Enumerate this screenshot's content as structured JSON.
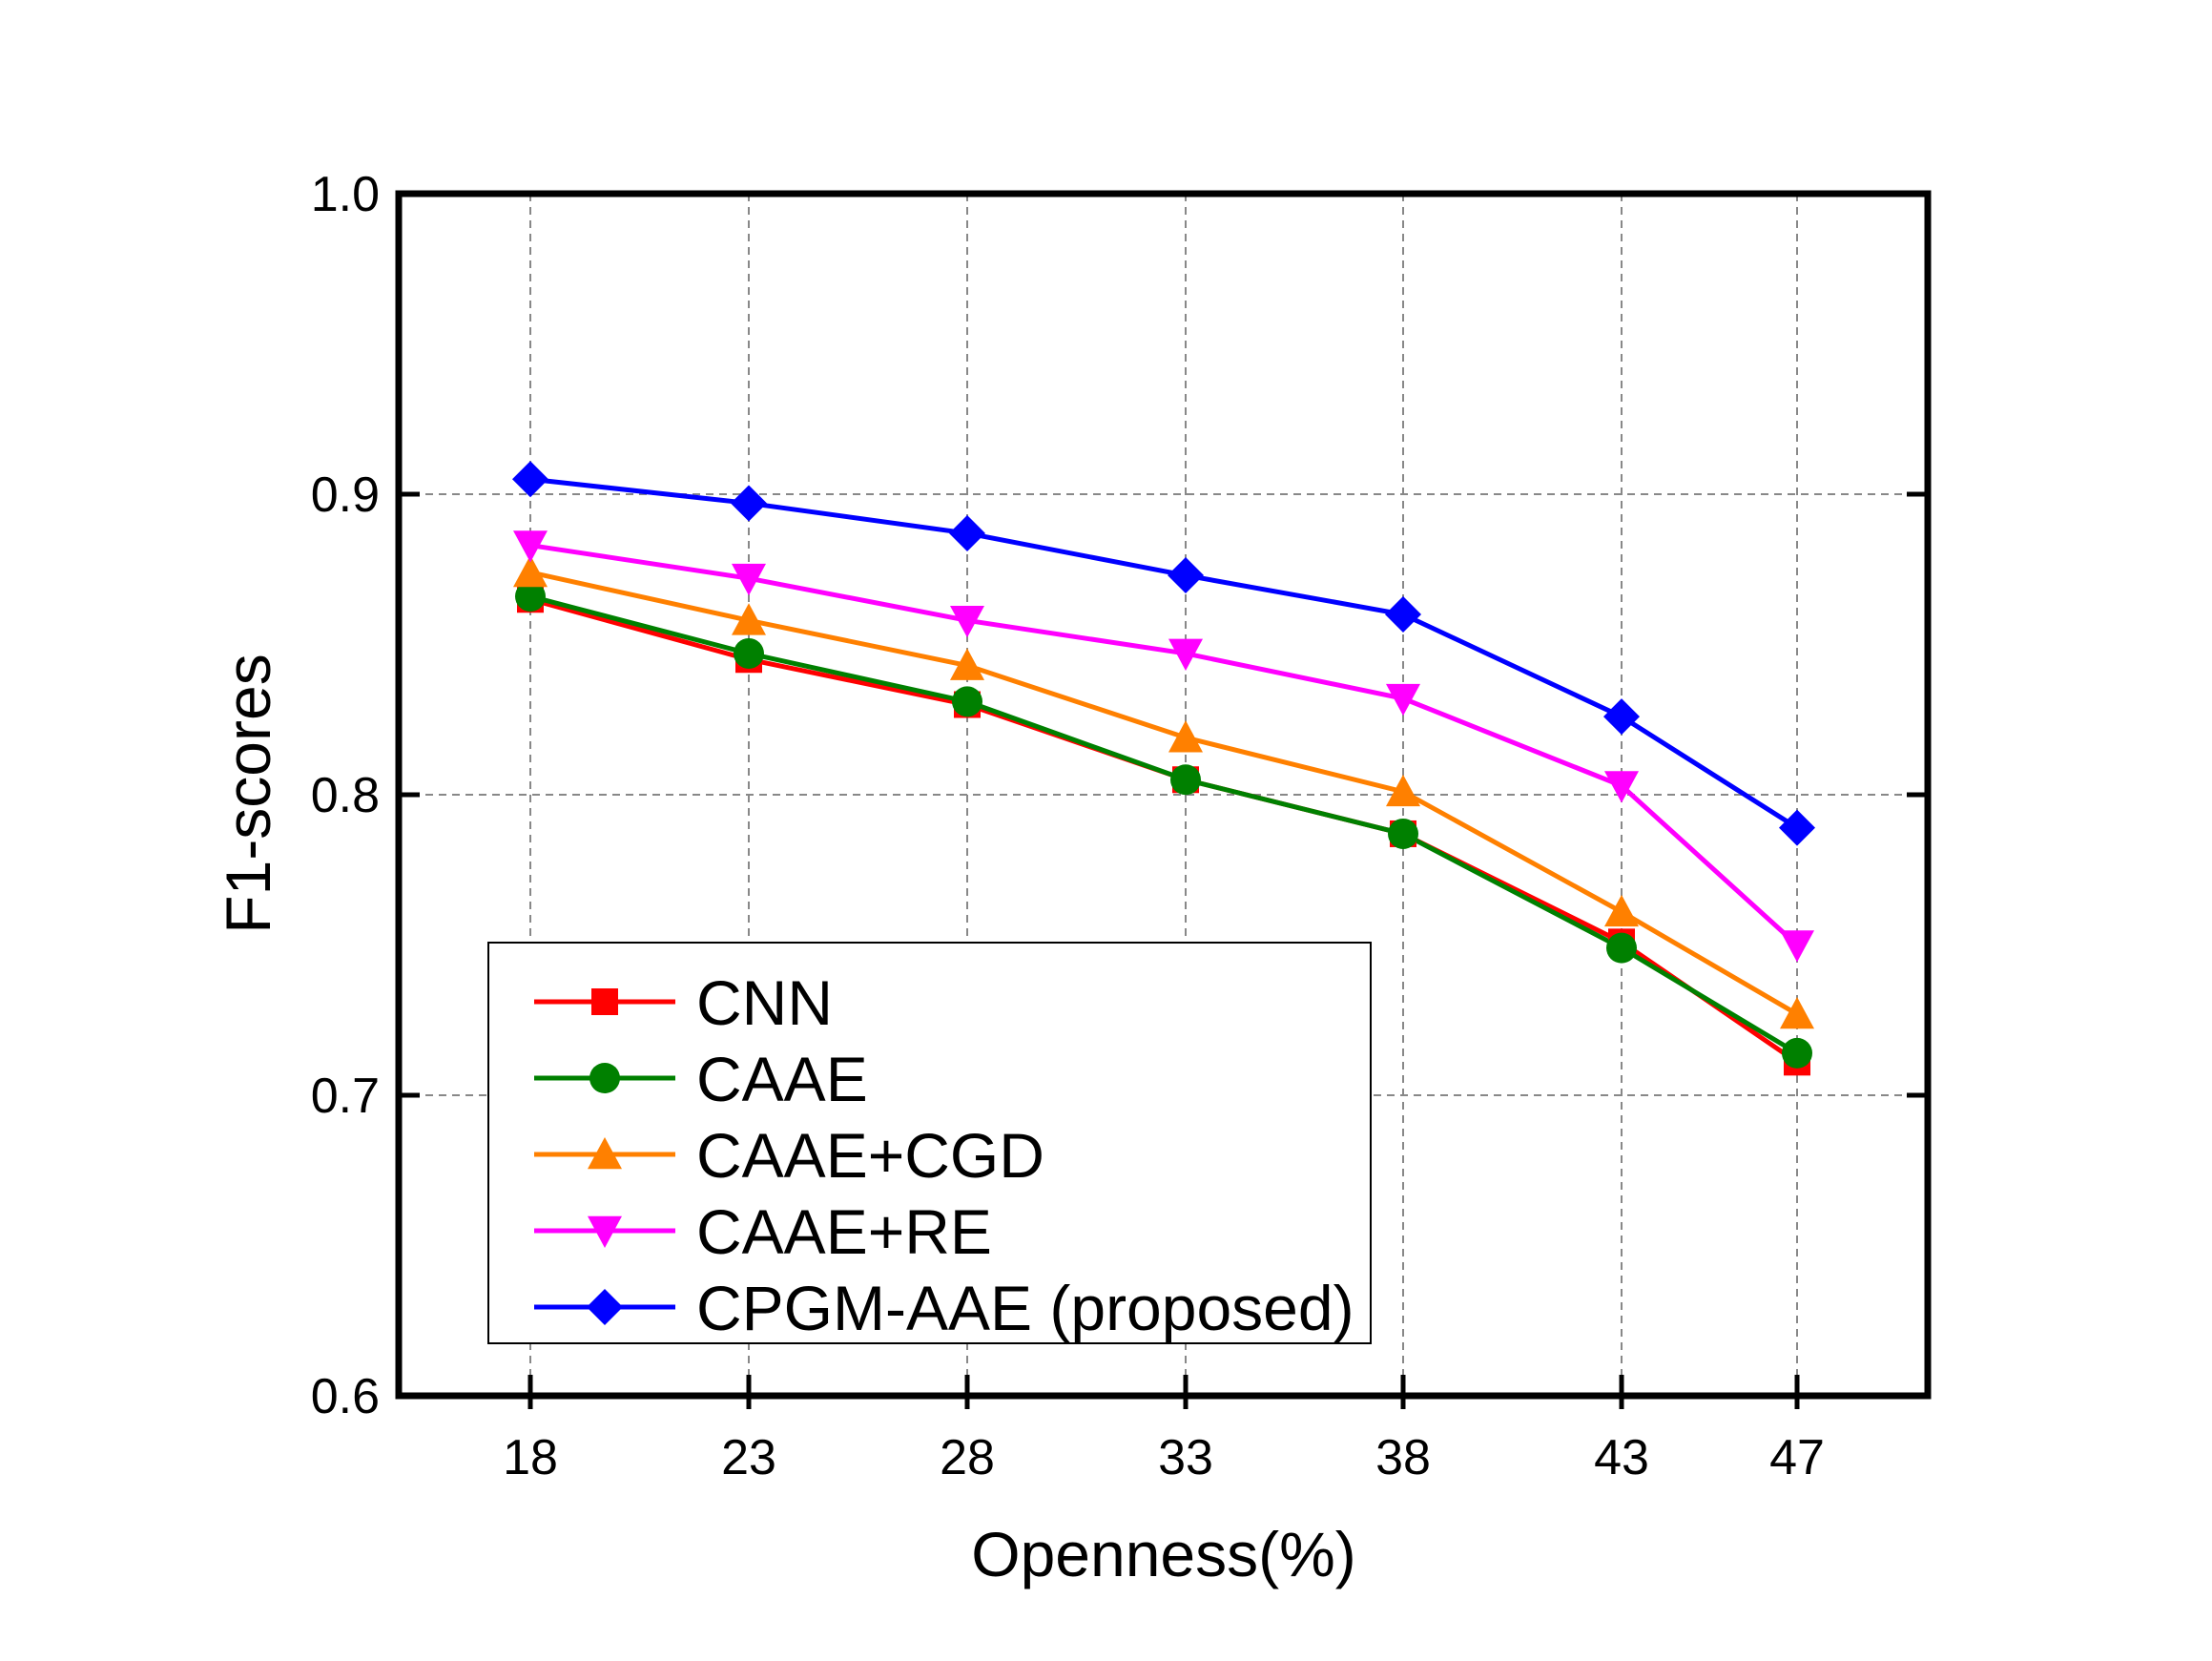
{
  "chart_data": {
    "type": "line",
    "title": "",
    "xlabel": "Openness(%)",
    "ylabel": "F1-scores",
    "categories": [
      "18",
      "23",
      "28",
      "33",
      "38",
      "43",
      "47"
    ],
    "x": [
      18,
      23,
      28,
      33,
      38,
      43,
      47
    ],
    "ylim": [
      0.6,
      1.0
    ],
    "yticks": [
      "0.6",
      "0.7",
      "0.8",
      "0.9",
      "1.0"
    ],
    "grid": true,
    "legend_position": "bottom-left",
    "series": [
      {
        "name": "CNN",
        "color": "#ff0000",
        "marker": "square",
        "values": [
          0.865,
          0.845,
          0.83,
          0.805,
          0.787,
          0.751,
          0.711
        ]
      },
      {
        "name": "CAAE",
        "color": "#008000",
        "marker": "circle",
        "values": [
          0.866,
          0.847,
          0.831,
          0.805,
          0.787,
          0.749,
          0.714
        ]
      },
      {
        "name": "CAAE+CGD",
        "color": "#ff8000",
        "marker": "triangle-up",
        "values": [
          0.874,
          0.858,
          0.843,
          0.819,
          0.801,
          0.761,
          0.727
        ]
      },
      {
        "name": "CAAE+RE",
        "color": "#ff00ff",
        "marker": "triangle-down",
        "values": [
          0.883,
          0.872,
          0.858,
          0.847,
          0.832,
          0.803,
          0.75
        ]
      },
      {
        "name": "CPGM-AAE (proposed)",
        "color": "#0000ff",
        "marker": "diamond",
        "values": [
          0.905,
          0.897,
          0.887,
          0.873,
          0.86,
          0.826,
          0.789
        ]
      }
    ]
  }
}
